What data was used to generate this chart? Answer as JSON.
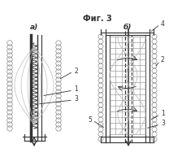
{
  "bg_color": "#ffffff",
  "title": "Фиг. 3",
  "title_fontsize": 7,
  "label_a": "а)",
  "label_b": "б)",
  "label_fontsize": 6.5,
  "fig_width": 2.4,
  "fig_height": 1.93,
  "dpi": 100,
  "dark_color": "#333333",
  "gray_color": "#888888",
  "light_color": "#bbbbbb"
}
